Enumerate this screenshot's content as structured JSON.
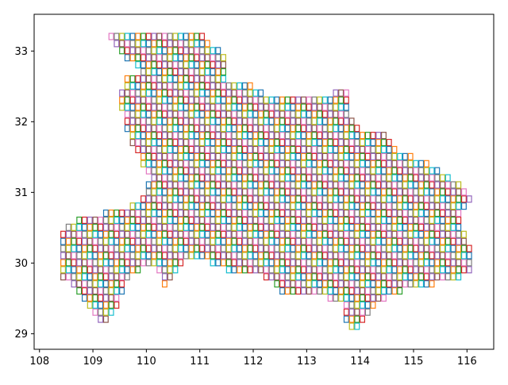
{
  "chart_data": {
    "type": "map",
    "title": "",
    "xlabel": "",
    "ylabel": "",
    "xlim": [
      107.9,
      116.5
    ],
    "ylim": [
      28.78,
      33.52
    ],
    "x_ticks": [
      108,
      109,
      110,
      111,
      112,
      113,
      114,
      115,
      116
    ],
    "y_ticks": [
      29,
      30,
      31,
      32,
      33
    ],
    "x_tick_labels": [
      "108",
      "109",
      "110",
      "111",
      "112",
      "113",
      "114",
      "115",
      "116"
    ],
    "y_tick_labels": [
      "29",
      "30",
      "31",
      "32",
      "33"
    ],
    "grid": false,
    "legend": "none",
    "cell_size_deg": 0.1,
    "cell_shape": "square-outline",
    "palette": [
      "#1f77b4",
      "#ff7f0e",
      "#2ca02c",
      "#d62728",
      "#9467bd",
      "#8c564b",
      "#e377c2",
      "#7f7f7f",
      "#bcbd22",
      "#17becf"
    ],
    "region_outline_lon_lat": [
      [
        109.3,
        33.25
      ],
      [
        110.0,
        33.25
      ],
      [
        110.5,
        33.28
      ],
      [
        111.0,
        33.3
      ],
      [
        111.2,
        33.12
      ],
      [
        111.5,
        32.9
      ],
      [
        111.5,
        32.6
      ],
      [
        112.0,
        32.5
      ],
      [
        112.2,
        32.4
      ],
      [
        113.0,
        32.4
      ],
      [
        113.3,
        32.35
      ],
      [
        113.75,
        32.45
      ],
      [
        113.8,
        32.05
      ],
      [
        114.0,
        31.85
      ],
      [
        114.5,
        31.85
      ],
      [
        114.7,
        31.6
      ],
      [
        115.0,
        31.5
      ],
      [
        115.3,
        31.4
      ],
      [
        115.5,
        31.3
      ],
      [
        115.8,
        31.15
      ],
      [
        116.0,
        31.05
      ],
      [
        116.1,
        30.9
      ],
      [
        115.9,
        30.7
      ],
      [
        115.95,
        30.45
      ],
      [
        116.05,
        30.2
      ],
      [
        116.1,
        29.85
      ],
      [
        115.7,
        29.75
      ],
      [
        115.4,
        29.7
      ],
      [
        115.0,
        29.65
      ],
      [
        114.6,
        29.55
      ],
      [
        114.3,
        29.4
      ],
      [
        114.0,
        29.1
      ],
      [
        113.8,
        29.05
      ],
      [
        113.65,
        29.4
      ],
      [
        113.2,
        29.55
      ],
      [
        113.0,
        29.6
      ],
      [
        112.8,
        29.55
      ],
      [
        112.5,
        29.6
      ],
      [
        112.2,
        29.8
      ],
      [
        111.9,
        29.88
      ],
      [
        111.5,
        29.9
      ],
      [
        111.2,
        30.0
      ],
      [
        110.7,
        30.05
      ],
      [
        110.5,
        29.8
      ],
      [
        110.3,
        29.65
      ],
      [
        110.2,
        29.95
      ],
      [
        109.9,
        29.9
      ],
      [
        109.6,
        29.75
      ],
      [
        109.5,
        29.45
      ],
      [
        109.3,
        29.15
      ],
      [
        109.1,
        29.15
      ],
      [
        108.95,
        29.3
      ],
      [
        108.7,
        29.6
      ],
      [
        108.5,
        29.75
      ],
      [
        108.4,
        29.8
      ],
      [
        108.4,
        30.35
      ],
      [
        108.5,
        30.55
      ],
      [
        108.9,
        30.65
      ],
      [
        109.2,
        30.7
      ],
      [
        109.6,
        30.75
      ],
      [
        109.8,
        30.88
      ],
      [
        110.0,
        30.92
      ],
      [
        110.05,
        31.2
      ],
      [
        109.9,
        31.35
      ],
      [
        109.9,
        31.5
      ],
      [
        109.7,
        31.7
      ],
      [
        109.6,
        32.0
      ],
      [
        109.5,
        32.3
      ],
      [
        109.6,
        32.6
      ],
      [
        109.9,
        32.7
      ],
      [
        109.6,
        32.9
      ],
      [
        109.4,
        33.1
      ],
      [
        109.3,
        33.25
      ]
    ]
  }
}
